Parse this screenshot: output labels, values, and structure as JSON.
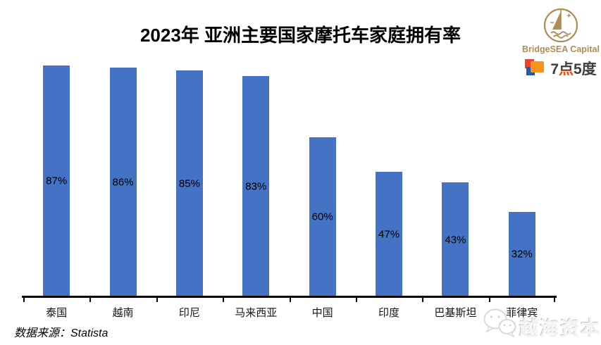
{
  "header": {
    "title": "2023年 亚洲主要国家摩托车家庭拥有率"
  },
  "branding": {
    "bridgesea_name": "BridgeSEA Capital",
    "gold_color": "#AE8E55",
    "seven": "7",
    "point": "点",
    "five_degree": "5度",
    "square_red": "#E8442E",
    "square_orange": "#F7941D",
    "square_blue": "#1D5CA8"
  },
  "chart_data": {
    "type": "bar",
    "title": "2023年 亚洲主要国家摩托车家庭拥有率",
    "categories": [
      "泰国",
      "越南",
      "印尼",
      "马来西亚",
      "中国",
      "印度",
      "巴基斯坦",
      "菲律宾"
    ],
    "values": [
      87,
      86,
      85,
      83,
      60,
      47,
      43,
      32
    ],
    "labels": [
      "87%",
      "86%",
      "85%",
      "83%",
      "60%",
      "47%",
      "43%",
      "32%"
    ],
    "unit": "%",
    "bar_color": "#4472C4",
    "label_color": "#000000",
    "label_position": "inside-center",
    "ylim": [
      0,
      89
    ],
    "xlabel": "",
    "ylabel": "",
    "grid": false,
    "legend": false,
    "y_axis_visible": false
  },
  "footer": {
    "source": "数据来源：Statista"
  },
  "watermark": {
    "text": "越海资本"
  }
}
